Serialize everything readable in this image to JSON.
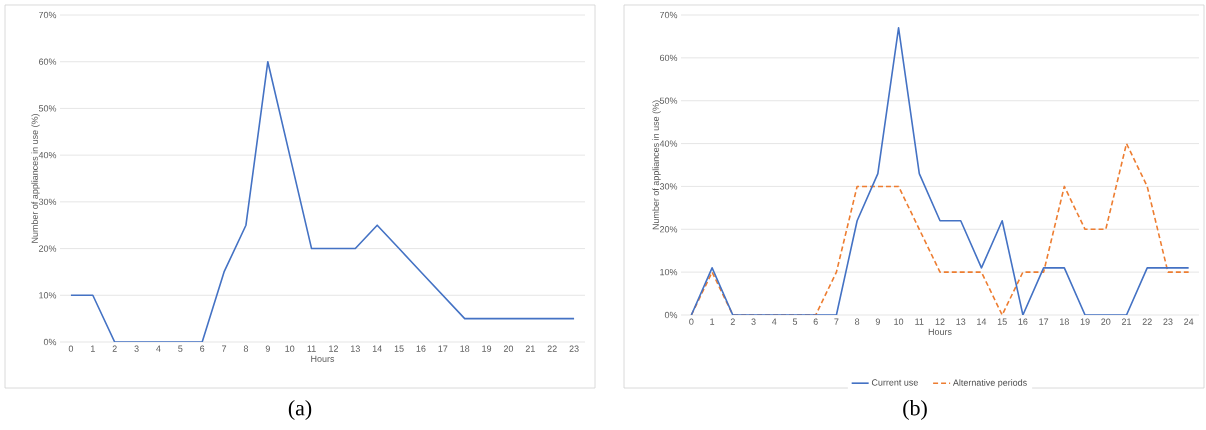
{
  "chart_data": [
    {
      "type": "line",
      "xlabel": "Hours",
      "ylabel": "Number of appliances in use (%)",
      "annotations": [
        "(a)"
      ],
      "categories": [
        "0",
        "1",
        "2",
        "3",
        "4",
        "5",
        "6",
        "7",
        "8",
        "9",
        "10",
        "11",
        "12",
        "13",
        "14",
        "15",
        "16",
        "17",
        "18",
        "19",
        "20",
        "21",
        "22",
        "23"
      ],
      "series": [
        {
          "color": "#4472c4",
          "line_style": "solid",
          "values": [
            10,
            10,
            0,
            0,
            0,
            0,
            0,
            15,
            25,
            60,
            40,
            20,
            20,
            20,
            25,
            20,
            15,
            10,
            5,
            5,
            5,
            5,
            5,
            5
          ]
        }
      ],
      "ylim": [
        0,
        70
      ],
      "yticks": [
        {
          "value": 0,
          "label": "0%"
        },
        {
          "value": 10,
          "label": "10%"
        },
        {
          "value": 20,
          "label": "20%"
        },
        {
          "value": 30,
          "label": "30%"
        },
        {
          "value": 40,
          "label": "40%"
        },
        {
          "value": 50,
          "label": "50%"
        },
        {
          "value": 60,
          "label": "60%"
        },
        {
          "value": 70,
          "label": "70%"
        }
      ],
      "grid": "y"
    },
    {
      "type": "line",
      "xlabel": "Hours",
      "ylabel": "Number of appliances in use (%)",
      "annotations": [
        "(b)"
      ],
      "categories": [
        "0",
        "1",
        "2",
        "3",
        "4",
        "5",
        "6",
        "7",
        "8",
        "9",
        "10",
        "11",
        "12",
        "13",
        "14",
        "15",
        "16",
        "17",
        "18",
        "19",
        "20",
        "21",
        "22",
        "23",
        "24"
      ],
      "series": [
        {
          "name": "Current use",
          "color": "#4472c4",
          "line_style": "solid",
          "values": [
            0,
            11,
            0,
            0,
            0,
            0,
            0,
            0,
            22,
            33,
            67,
            33,
            22,
            22,
            11,
            22,
            0,
            11,
            11,
            0,
            0,
            0,
            11,
            11,
            11
          ]
        },
        {
          "name": "Alternative periods",
          "color": "#ed7d31",
          "line_style": "dashed",
          "values": [
            0,
            10,
            0,
            0,
            0,
            0,
            0,
            10,
            30,
            30,
            30,
            20,
            10,
            10,
            10,
            0,
            10,
            10,
            30,
            20,
            20,
            40,
            30,
            10,
            10
          ]
        }
      ],
      "ylim": [
        0,
        70
      ],
      "yticks": [
        {
          "value": 0,
          "label": "0%"
        },
        {
          "value": 10,
          "label": "10%"
        },
        {
          "value": 20,
          "label": "20%"
        },
        {
          "value": 30,
          "label": "30%"
        },
        {
          "value": 40,
          "label": "40%"
        },
        {
          "value": 50,
          "label": "50%"
        },
        {
          "value": 60,
          "label": "60%"
        },
        {
          "value": 70,
          "label": "70%"
        }
      ],
      "grid": "y",
      "legend": "bottom"
    }
  ]
}
